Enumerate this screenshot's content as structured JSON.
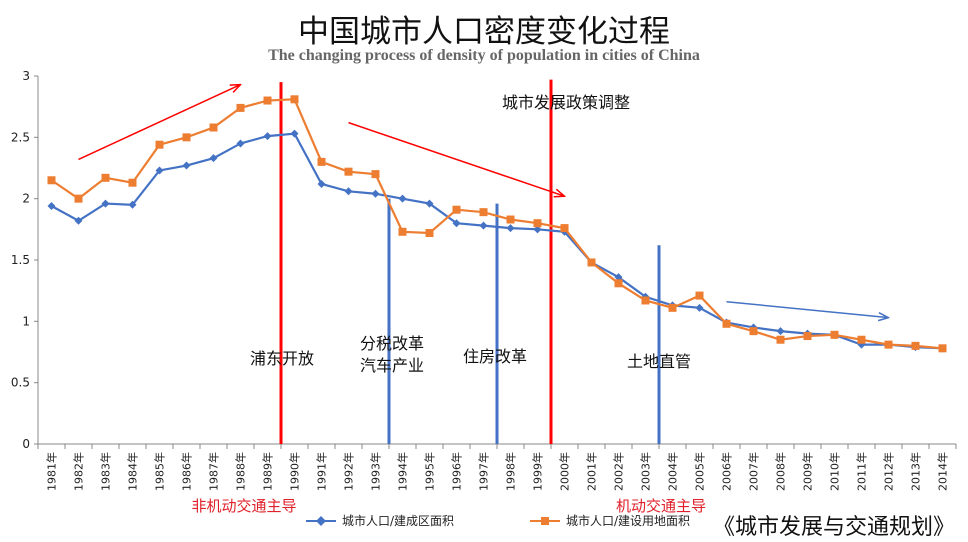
{
  "title": "中国城市人口密度变化过程",
  "subtitle": "The changing process of density of population in cities of China",
  "source": "《城市发展与交通规划》",
  "chart_data": {
    "type": "line",
    "categories": [
      "1981年",
      "1982年",
      "1983年",
      "1984年",
      "1985年",
      "1986年",
      "1987年",
      "1988年",
      "1989年",
      "1990年",
      "1991年",
      "1992年",
      "1993年",
      "1994年",
      "1995年",
      "1996年",
      "1997年",
      "1998年",
      "1999年",
      "2000年",
      "2001年",
      "2002年",
      "2003年",
      "2004年",
      "2005年",
      "2006年",
      "2007年",
      "2008年",
      "2009年",
      "2010年",
      "2011年",
      "2012年",
      "2013年",
      "2014年"
    ],
    "ylim": [
      0,
      3
    ],
    "yticks": [
      0,
      0.5,
      1,
      1.5,
      2,
      2.5,
      3
    ],
    "grid": false,
    "legend_position": "bottom",
    "series": [
      {
        "name": "城市人口/建成区面积",
        "color": "#4472C4",
        "marker": "diamond",
        "values": [
          1.94,
          1.82,
          1.96,
          1.95,
          2.23,
          2.27,
          2.33,
          2.45,
          2.51,
          2.53,
          2.12,
          2.06,
          2.04,
          2.0,
          1.96,
          1.8,
          1.78,
          1.76,
          1.75,
          1.73,
          1.48,
          1.36,
          1.2,
          1.13,
          1.11,
          0.99,
          0.95,
          0.92,
          0.9,
          0.89,
          0.81,
          0.81,
          0.79,
          0.78
        ]
      },
      {
        "name": "城市人口/建设用地面积",
        "color": "#ED7D31",
        "marker": "square",
        "values": [
          2.15,
          2.0,
          2.17,
          2.13,
          2.44,
          2.5,
          2.58,
          2.74,
          2.8,
          2.81,
          2.3,
          2.22,
          2.2,
          1.73,
          1.72,
          1.91,
          1.89,
          1.83,
          1.8,
          1.76,
          1.48,
          1.31,
          1.17,
          1.11,
          1.21,
          0.98,
          0.92,
          0.85,
          0.88,
          0.89,
          0.85,
          0.81,
          0.8,
          0.78
        ]
      }
    ],
    "annotations": [
      {
        "text": "浦东开放",
        "color": "#111111"
      },
      {
        "text": "分税改革",
        "color": "#111111"
      },
      {
        "text": "汽车产业",
        "color": "#111111"
      },
      {
        "text": "住房改革",
        "color": "#111111"
      },
      {
        "text": "城市发展政策调整",
        "color": "#111111"
      },
      {
        "text": "土地直管",
        "color": "#111111"
      },
      {
        "text": "非机动交通主导",
        "color": "#E0202A"
      },
      {
        "text": "机动交通主导",
        "color": "#E0202A"
      }
    ],
    "vlines": [
      {
        "at": "1990年",
        "color": "#FF0000",
        "ymin": 0,
        "ymax": 2.95
      },
      {
        "at": "2000年",
        "color": "#FF0000",
        "ymin": 0,
        "ymax": 2.97
      },
      {
        "at": "1994年",
        "color": "#4472C4",
        "ymin": 0,
        "ymax": 2.0
      },
      {
        "at": "1998年",
        "color": "#4472C4",
        "ymin": 0,
        "ymax": 1.96
      },
      {
        "at": "2004年",
        "color": "#4472C4",
        "ymin": 0,
        "ymax": 1.62
      }
    ],
    "arrows": [
      {
        "color": "#FF0000",
        "from": [
          "1982年",
          2.32
        ],
        "to": [
          "1988年",
          2.93
        ]
      },
      {
        "color": "#FF0000",
        "from": [
          "1992年",
          2.62
        ],
        "to": [
          "2000年",
          2.02
        ]
      },
      {
        "color": "#4472C4",
        "from": [
          "2006年",
          1.16
        ],
        "to": [
          "2012年",
          1.03
        ]
      }
    ]
  }
}
